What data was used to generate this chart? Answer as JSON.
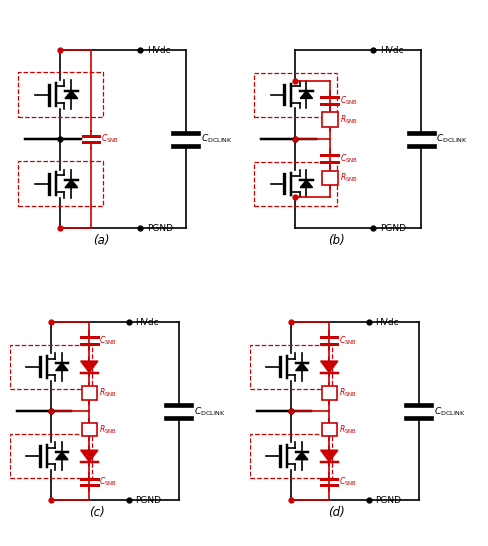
{
  "colors": {
    "black": "#000000",
    "red": "#cc0000",
    "white": "#ffffff"
  },
  "lw": 1.2,
  "subfig_labels": [
    "(a)",
    "(b)",
    "(c)",
    "(d)"
  ]
}
